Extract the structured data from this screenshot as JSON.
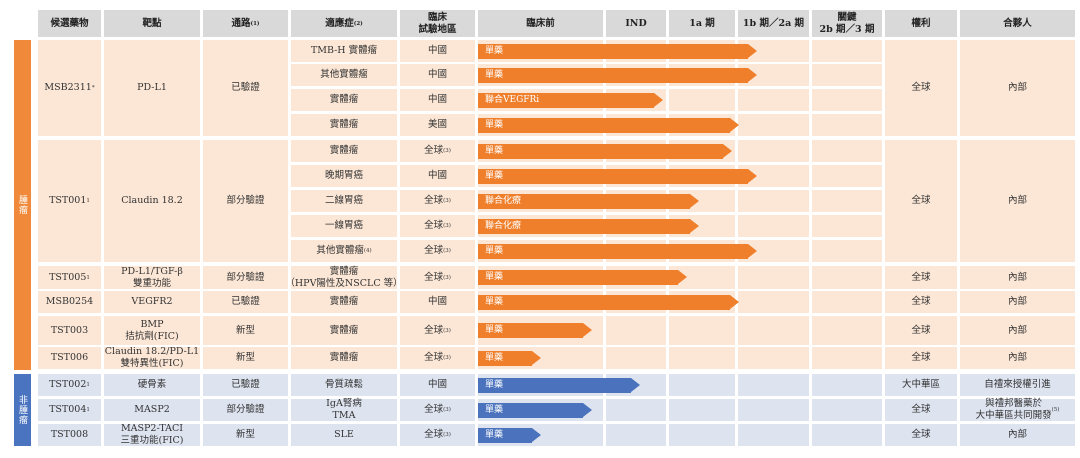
{
  "colors": {
    "header_bg": "#d9d9d9",
    "onc_band": "#f08a3a",
    "onc_cell": "#fce7d6",
    "onc_bar": "#f07f2c",
    "non_band": "#4b74c0",
    "non_cell": "#dde3ef",
    "non_bar": "#4a72bd"
  },
  "headers": {
    "candidate": "候選藥物",
    "target": "靶點",
    "pathway": "通路",
    "pathway_note": "(1)",
    "indication": "適應症",
    "indication_note": "(2)",
    "region": "臨床\n試驗地區",
    "preclinical": "臨床前",
    "ind": "IND",
    "phase1a": "1a 期",
    "phase1b2a": "1b 期／2a 期",
    "pivotal": "關鍵\n2b 期／3 期",
    "rights": "權利",
    "partner": "合夥人"
  },
  "categories": {
    "oncology": "腫瘤",
    "non_oncology": "非腫瘤"
  },
  "candidates": [
    {
      "name": "MSB2311",
      "note": "*",
      "target": "PD-L1",
      "pathway": "已驗證",
      "rights": "全球",
      "partner": "內部",
      "partner_note": "",
      "category": "oncology",
      "rows": 4
    },
    {
      "name": "TST001",
      "note": "1",
      "target": "Claudin 18.2",
      "pathway": "部分驗證",
      "rights": "全球",
      "partner": "內部",
      "partner_note": "",
      "category": "oncology",
      "rows": 5
    },
    {
      "name": "TST005",
      "note": "1",
      "target": "PD-L1/TGF-β\n雙重功能",
      "pathway": "部分驗證",
      "rights": "全球",
      "partner": "內部",
      "partner_note": "",
      "category": "oncology",
      "rows": 1
    },
    {
      "name": "MSB0254",
      "note": "",
      "target": "VEGFR2",
      "pathway": "已驗證",
      "rights": "全球",
      "partner": "內部",
      "partner_note": "",
      "category": "oncology",
      "rows": 1
    },
    {
      "name": "TST003",
      "note": "",
      "target": "BMP\n拮抗劑(FIC)",
      "pathway": "新型",
      "rights": "全球",
      "partner": "內部",
      "partner_note": "",
      "category": "oncology",
      "rows": 1
    },
    {
      "name": "TST006",
      "note": "",
      "target": "Claudin 18.2/PD-L1\n雙特異性(FIC)",
      "pathway": "新型",
      "rights": "全球",
      "partner": "內部",
      "partner_note": "",
      "category": "oncology",
      "rows": 1
    },
    {
      "name": "TST002",
      "note": "1",
      "target": "硬骨素",
      "pathway": "已驗證",
      "rights": "大中華區",
      "partner": "自禮來授權引進",
      "partner_note": "",
      "category": "non_oncology",
      "rows": 1
    },
    {
      "name": "TST004",
      "note": "1",
      "target": "MASP2",
      "pathway": "部分驗證",
      "rights": "全球",
      "partner": "與禮邦醫藥於\n大中華區共同開發",
      "partner_note": "(5)",
      "category": "non_oncology",
      "rows": 1
    },
    {
      "name": "TST008",
      "note": "",
      "target": "MASP2-TACI\n三重功能(FIC)",
      "pathway": "新型",
      "rights": "全球",
      "partner": "內部",
      "partner_note": "",
      "category": "non_oncology",
      "rows": 1
    }
  ],
  "programs": [
    {
      "indication": "TMB-H 實體瘤",
      "ind_note": "",
      "region": "中國",
      "region_note": "",
      "bar_label": "單藥",
      "progress": 0.31
    },
    {
      "indication": "其他實體瘤",
      "ind_note": "",
      "region": "中國",
      "region_note": "",
      "bar_label": "單藥",
      "progress": 0.31
    },
    {
      "indication": "實體瘤",
      "ind_note": "",
      "region": "中國",
      "region_note": "",
      "bar_label": "聯合VEGFRi",
      "progress": 0.205
    },
    {
      "indication": "實體瘤",
      "ind_note": "",
      "region": "美國",
      "region_note": "",
      "bar_label": "單藥",
      "progress": 0.29
    },
    {
      "indication": "實體瘤",
      "ind_note": "",
      "region": "全球",
      "region_note": "(3)",
      "bar_label": "單藥",
      "progress": 0.282
    },
    {
      "indication": "晚期胃癌",
      "ind_note": "",
      "region": "中國",
      "region_note": "",
      "bar_label": "單藥",
      "progress": 0.31
    },
    {
      "indication": "二線胃癌",
      "ind_note": "",
      "region": "全球",
      "region_note": "(3)",
      "bar_label": "聯合化療",
      "progress": 0.245
    },
    {
      "indication": "一線胃癌",
      "ind_note": "",
      "region": "全球",
      "region_note": "(3)",
      "bar_label": "聯合化療",
      "progress": 0.245
    },
    {
      "indication": "其他實體瘤",
      "ind_note": "(4)",
      "region": "全球",
      "region_note": "(3)",
      "bar_label": "單藥",
      "progress": 0.31
    },
    {
      "indication": "實體瘤\n（HPV陽性及NSCLC 等）",
      "ind_note": "",
      "region": "全球",
      "region_note": "(3)",
      "bar_label": "單藥",
      "progress": 0.232
    },
    {
      "indication": "實體瘤",
      "ind_note": "",
      "region": "中國",
      "region_note": "",
      "bar_label": "單藥",
      "progress": 0.29
    },
    {
      "indication": "實體瘤",
      "ind_note": "",
      "region": "全球",
      "region_note": "(3)",
      "bar_label": "單藥",
      "progress": 0.127
    },
    {
      "indication": "實體瘤",
      "ind_note": "",
      "region": "全球",
      "region_note": "(3)",
      "bar_label": "單藥",
      "progress": 0.07
    },
    {
      "indication": "骨質疏鬆",
      "ind_note": "",
      "region": "中國",
      "region_note": "",
      "bar_label": "單藥",
      "progress": 0.18
    },
    {
      "indication": "IgA腎病\nTMA",
      "ind_note": "",
      "region": "全球",
      "region_note": "(3)",
      "bar_label": "單藥",
      "progress": 0.127
    },
    {
      "indication": "SLE",
      "ind_note": "",
      "region": "全球",
      "region_note": "(3)",
      "bar_label": "單藥",
      "progress": 0.07
    }
  ]
}
